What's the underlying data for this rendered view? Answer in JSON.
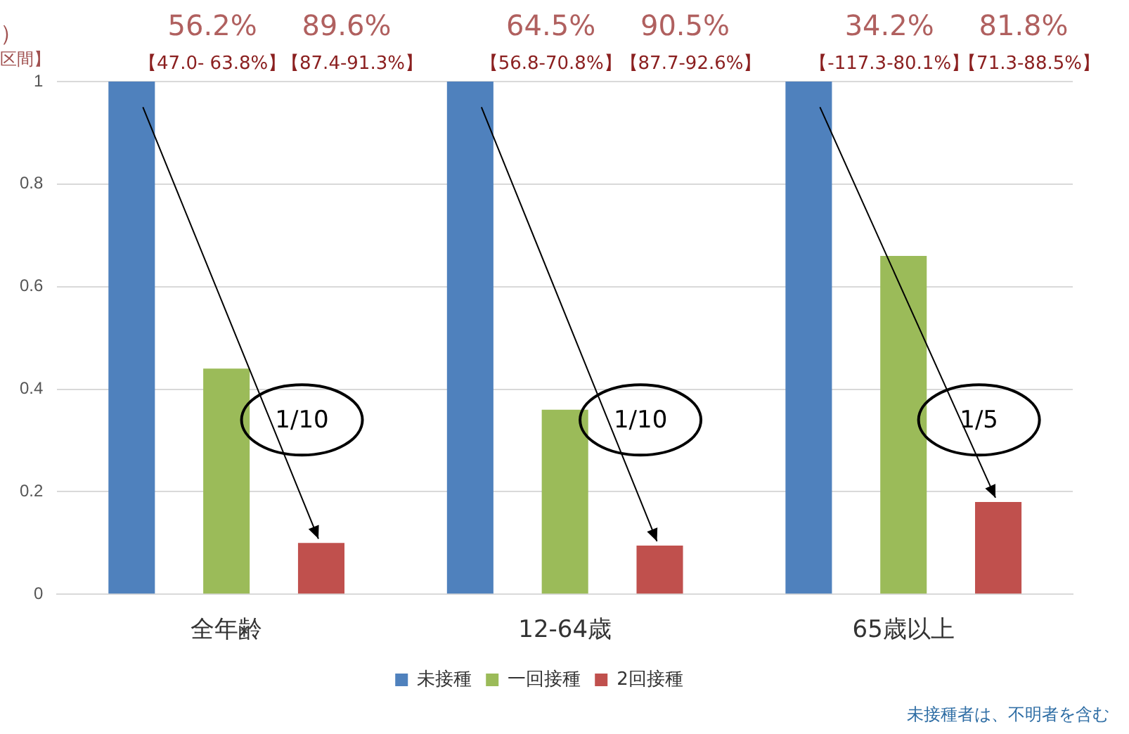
{
  "chart_data": {
    "type": "bar",
    "categories": [
      "全年齢",
      "12-64歳",
      "65歳以上"
    ],
    "series": [
      {
        "name": "未接種",
        "color": "#4f81bd",
        "values": [
          1,
          1,
          1
        ]
      },
      {
        "name": "一回接種",
        "color": "#9bbb59",
        "values": [
          0.44,
          0.36,
          0.66
        ]
      },
      {
        "name": "2回接種",
        "color": "#c0504d",
        "values": [
          0.1,
          0.095,
          0.18
        ]
      }
    ],
    "ylim": [
      0,
      1
    ],
    "yticks": [
      0,
      0.2,
      0.4,
      0.6,
      0.8,
      1
    ],
    "grid": "y",
    "legend": "bottom",
    "annotations": [
      "56.2%",
      "89.6%",
      "【47.0- 63.8%】",
      "【87.4-91.3%】",
      "1/10",
      "64.5%",
      "90.5%",
      "【56.8-70.8%】",
      "【87.7-92.6%】",
      "1/10",
      "34.2%",
      "81.8%",
      "【-117.3-80.1%】",
      "【71.3-88.5%】",
      "1/5",
      "未接種者は、不明者を含む",
      "）",
      "区間】"
    ]
  }
}
